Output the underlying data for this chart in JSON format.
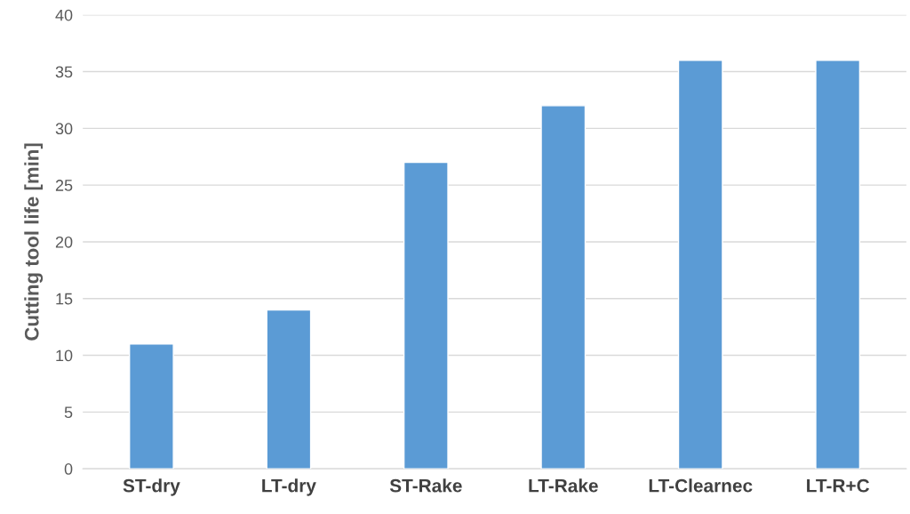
{
  "chart_data": {
    "type": "bar",
    "ylabel": "Cutting tool life [min]",
    "categories": [
      "ST-dry",
      "LT-dry",
      "ST-Rake",
      "LT-Rake",
      "LT-Clearnec",
      "LT-R+C"
    ],
    "values": [
      11,
      14,
      27,
      32,
      36,
      36
    ],
    "color": "#5b9bd5",
    "ylim": [
      0,
      40
    ],
    "yticks": [
      0,
      5,
      10,
      15,
      20,
      25,
      30,
      35,
      40
    ],
    "grid": "y",
    "legend": false
  }
}
